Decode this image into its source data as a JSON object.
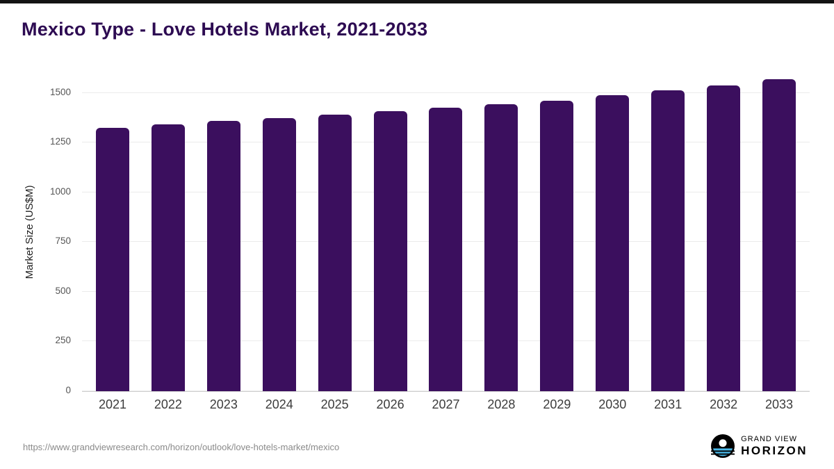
{
  "page": {
    "source_url": "https://www.grandviewresearch.com/horizon/outlook/love-hotels-market/mexico",
    "brand": {
      "line1": "GRAND VIEW",
      "line2": "HORIZON",
      "accent_color": "#49b8e8",
      "circle_color": "#000000"
    }
  },
  "chart_data": {
    "type": "bar",
    "title": "Mexico Type - Love Hotels Market, 2021-2033",
    "categories": [
      "2021",
      "2022",
      "2023",
      "2024",
      "2025",
      "2026",
      "2027",
      "2028",
      "2029",
      "2030",
      "2031",
      "2032",
      "2033"
    ],
    "values": [
      1325,
      1342,
      1358,
      1374,
      1390,
      1407,
      1425,
      1443,
      1462,
      1487,
      1512,
      1538,
      1568
    ],
    "xlabel": "",
    "ylabel": "Market Size (US$M)",
    "ylim": [
      0,
      1600
    ],
    "yticks": [
      0,
      250,
      500,
      750,
      1000,
      1250,
      1500
    ],
    "grid": true,
    "legend": false,
    "bar_color": "#3b0f5e",
    "title_color": "#2d0b52"
  }
}
